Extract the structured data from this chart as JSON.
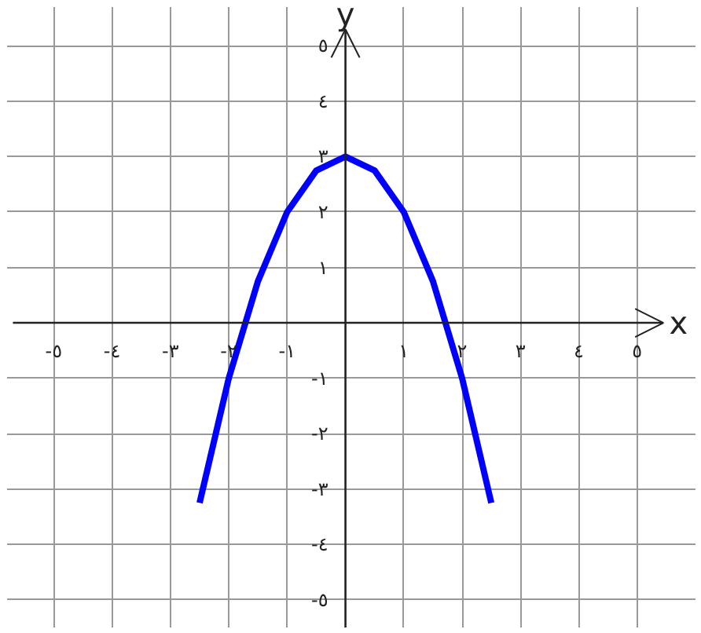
{
  "chart_data": {
    "type": "line",
    "xlabel": "x",
    "ylabel": "y",
    "x": [
      -2.5,
      -2,
      -1.5,
      -1,
      -0.5,
      0,
      0.5,
      1,
      1.5,
      2,
      2.5
    ],
    "series": [
      {
        "color": "#0000ff",
        "values": [
          -3.25,
          -1,
          0.75,
          2,
          2.75,
          3,
          2.75,
          2,
          0.75,
          -1,
          -3.25
        ]
      }
    ],
    "xlim": [
      -5.8,
      6.0
    ],
    "ylim": [
      -5.5,
      5.7
    ],
    "xticks": [
      {
        "value": -5,
        "label": "-٥"
      },
      {
        "value": -4,
        "label": "-٤"
      },
      {
        "value": -3,
        "label": "-٣"
      },
      {
        "value": -2,
        "label": "-٢"
      },
      {
        "value": -1,
        "label": "-١"
      },
      {
        "value": 1,
        "label": "١"
      },
      {
        "value": 2,
        "label": "٢"
      },
      {
        "value": 3,
        "label": "٣"
      },
      {
        "value": 4,
        "label": "٤"
      },
      {
        "value": 5,
        "label": "٥"
      }
    ],
    "yticks": [
      {
        "value": -5,
        "label": "-٥"
      },
      {
        "value": -4,
        "label": "-٤"
      },
      {
        "value": -3,
        "label": "-٣"
      },
      {
        "value": -2,
        "label": "-٢"
      },
      {
        "value": -1,
        "label": "-١"
      },
      {
        "value": 1,
        "label": "١"
      },
      {
        "value": 2,
        "label": "٢"
      },
      {
        "value": 3,
        "label": "٣"
      },
      {
        "value": 4,
        "label": "٤"
      },
      {
        "value": 5,
        "label": "٥"
      }
    ],
    "grid": true,
    "marker": "none",
    "line_style": "solid"
  }
}
